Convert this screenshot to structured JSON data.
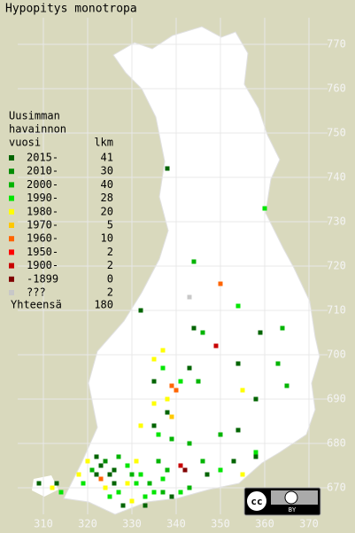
{
  "title": "Hypopitys monotropa",
  "legend": {
    "heading": [
      "Uusimman",
      "havainnon"
    ],
    "year_header": "vuosi",
    "count_header": "lkm",
    "rows": [
      {
        "label": "2015-",
        "color": "#006400",
        "count": 41
      },
      {
        "label": "2010-",
        "color": "#008c00",
        "count": 30
      },
      {
        "label": "2000-",
        "color": "#00b400",
        "count": 40
      },
      {
        "label": "1990-",
        "color": "#00e600",
        "count": 28
      },
      {
        "label": "1980-",
        "color": "#ffff00",
        "count": 20
      },
      {
        "label": "1970-",
        "color": "#ffc800",
        "count": 5
      },
      {
        "label": "1960-",
        "color": "#ff6400",
        "count": 10
      },
      {
        "label": "1950-",
        "color": "#ff0000",
        "count": 2
      },
      {
        "label": "1900-",
        "color": "#c80000",
        "count": 2
      },
      {
        "label": "-1899",
        "color": "#800000",
        "count": 0
      },
      {
        "label": "???",
        "color": "#c8c8c8",
        "count": 2
      }
    ],
    "total_label": "Yhteensä",
    "total": 180
  },
  "xlim": [
    310,
    370
  ],
  "xticks": [
    310,
    320,
    330,
    340,
    350,
    360,
    370
  ],
  "ylim": [
    670,
    770
  ],
  "yticks": [
    670,
    680,
    690,
    700,
    710,
    720,
    730,
    740,
    750,
    760,
    770
  ],
  "points": [
    [
      338,
      742,
      0
    ],
    [
      360,
      733,
      3
    ],
    [
      344,
      721,
      2
    ],
    [
      350,
      716,
      6
    ],
    [
      343,
      713,
      10
    ],
    [
      354,
      711,
      3
    ],
    [
      332,
      710,
      0
    ],
    [
      346,
      705,
      2
    ],
    [
      344,
      706,
      0
    ],
    [
      349,
      702,
      8
    ],
    [
      359,
      705,
      0
    ],
    [
      364,
      706,
      2
    ],
    [
      363,
      698,
      2
    ],
    [
      365,
      693,
      2
    ],
    [
      354,
      698,
      0
    ],
    [
      358,
      690,
      0
    ],
    [
      355,
      692,
      4
    ],
    [
      343,
      697,
      0
    ],
    [
      345,
      694,
      2
    ],
    [
      339,
      693,
      6
    ],
    [
      340,
      692,
      6
    ],
    [
      341,
      694,
      3
    ],
    [
      337,
      697,
      3
    ],
    [
      335,
      699,
      4
    ],
    [
      337,
      701,
      4
    ],
    [
      335,
      694,
      0
    ],
    [
      335,
      689,
      4
    ],
    [
      338,
      690,
      4
    ],
    [
      338,
      687,
      0
    ],
    [
      339,
      686,
      5
    ],
    [
      332,
      684,
      4
    ],
    [
      335,
      684,
      0
    ],
    [
      336,
      682,
      3
    ],
    [
      339,
      681,
      2
    ],
    [
      343,
      680,
      2
    ],
    [
      350,
      682,
      2
    ],
    [
      354,
      683,
      0
    ],
    [
      358,
      677,
      0
    ],
    [
      358,
      678,
      3
    ],
    [
      350,
      674,
      3
    ],
    [
      353,
      676,
      0
    ],
    [
      346,
      676,
      2
    ],
    [
      347,
      673,
      0
    ],
    [
      355,
      673,
      4
    ],
    [
      341,
      675,
      8
    ],
    [
      342,
      674,
      9
    ],
    [
      338,
      674,
      2
    ],
    [
      336,
      676,
      2
    ],
    [
      337,
      672,
      3
    ],
    [
      343,
      670,
      2
    ],
    [
      341,
      669,
      3
    ],
    [
      339,
      668,
      0
    ],
    [
      334,
      671,
      2
    ],
    [
      332,
      673,
      3
    ],
    [
      330,
      673,
      2
    ],
    [
      329,
      671,
      4
    ],
    [
      327,
      669,
      3
    ],
    [
      328,
      666,
      0
    ],
    [
      330,
      667,
      4
    ],
    [
      333,
      668,
      3
    ],
    [
      335,
      669,
      3
    ],
    [
      337,
      669,
      2
    ],
    [
      322,
      677,
      0
    ],
    [
      323,
      675,
      0
    ],
    [
      324,
      676,
      1
    ],
    [
      321,
      674,
      2
    ],
    [
      320,
      676,
      4
    ],
    [
      325,
      673,
      0
    ],
    [
      326,
      671,
      0
    ],
    [
      324,
      670,
      4
    ],
    [
      327,
      677,
      2
    ],
    [
      318,
      673,
      4
    ],
    [
      319,
      671,
      3
    ],
    [
      313,
      671,
      0
    ],
    [
      312,
      670,
      4
    ],
    [
      309,
      671,
      0
    ],
    [
      314,
      669,
      3
    ],
    [
      323,
      672,
      6
    ],
    [
      322,
      673,
      0
    ],
    [
      326,
      674,
      0
    ],
    [
      331,
      671,
      3
    ],
    [
      333,
      666,
      0
    ],
    [
      325,
      668,
      3
    ],
    [
      331,
      676,
      4
    ],
    [
      329,
      675,
      3
    ]
  ],
  "license": {
    "cc": "cc",
    "by": "BY"
  }
}
